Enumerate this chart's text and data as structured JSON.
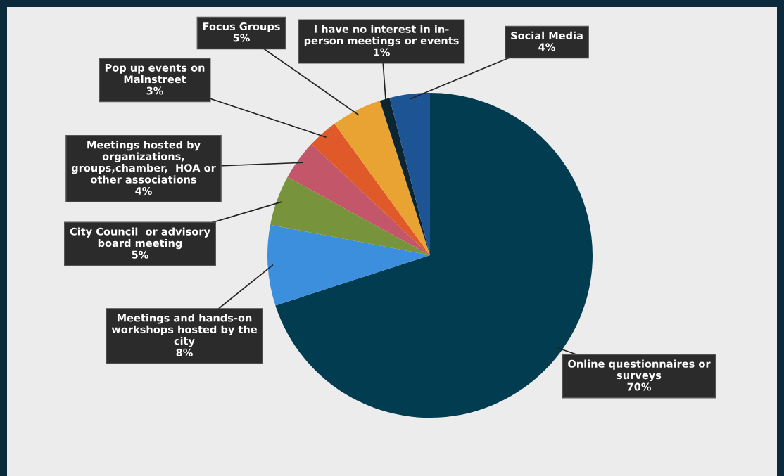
{
  "chart_data": {
    "type": "pie",
    "categories": [
      "Online questionnaires or\nsurveys",
      "Meetings and hands-on\nworkshops hosted by the\ncity",
      "City Council  or advisory\nboard meeting",
      "Meetings hosted by\norganizations,\ngroups,chamber,  HOA or\nother associations",
      "Pop up events on\nMainstreet",
      "Focus Groups",
      "I have no interest in in-\nperson meetings or events",
      "Social Media"
    ],
    "values": [
      70,
      8,
      5,
      4,
      3,
      5,
      1,
      4
    ],
    "value_labels": [
      "70%",
      "8%",
      "5%",
      "4%",
      "3%",
      "5%",
      "1%",
      "4%"
    ],
    "colors": [
      "#023c50",
      "#3b8fdc",
      "#77933c",
      "#c4566a",
      "#df5a28",
      "#e9a332",
      "#0c2530",
      "#1c5494"
    ],
    "legend": false
  }
}
